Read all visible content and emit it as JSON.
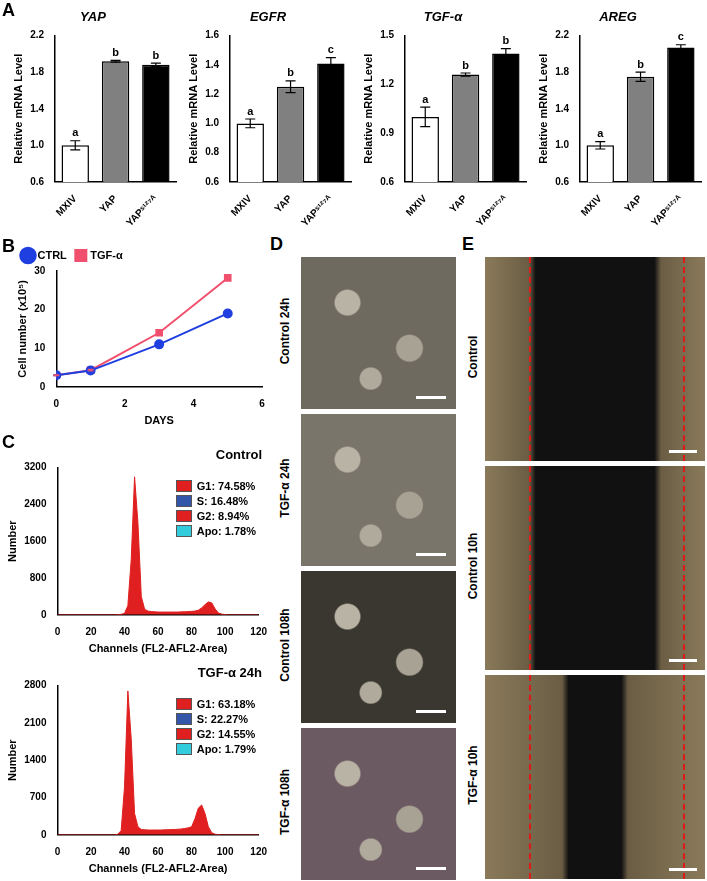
{
  "chart_data": [
    {
      "type": "bar",
      "title": "YAP",
      "categories": [
        "MXIV",
        "YAP",
        "YAPˢ¹²⁷ᴬ"
      ],
      "values": [
        1.0,
        1.92,
        1.88
      ],
      "errors": [
        0.05,
        0.01,
        0.02
      ],
      "annotations": [
        "a",
        "b",
        "b"
      ],
      "colors": [
        "#ffffff",
        "#808080",
        "#000000"
      ],
      "ylabel": "Relative mRNA Level",
      "ylim": [
        0.6,
        2.2
      ],
      "yticks": [
        0.6,
        {
          "value": 1.0,
          "label": "1.0"
        },
        1.4,
        1.8,
        2.2
      ],
      "grid": false
    },
    {
      "type": "bar",
      "title": "EGFR",
      "categories": [
        "MXIV",
        "YAP",
        "YAPˢ¹²⁷ᴬ"
      ],
      "values": [
        1.0,
        1.25,
        1.41
      ],
      "errors": [
        0.03,
        0.04,
        0.04
      ],
      "annotations": [
        "a",
        "b",
        "c"
      ],
      "colors": [
        "#ffffff",
        "#808080",
        "#000000"
      ],
      "ylabel": "Relative mRNA Level",
      "ylim": [
        0.6,
        1.6
      ],
      "yticks": [
        0.6,
        0.8,
        {
          "value": 1.0,
          "label": "1.0"
        },
        1.2,
        1.4,
        1.6
      ],
      "grid": false
    },
    {
      "type": "bar",
      "title": "TGF-α",
      "categories": [
        "MXIV",
        "YAP",
        "YAPˢ¹²⁷ᴬ"
      ],
      "values": [
        1.0,
        1.26,
        1.39
      ],
      "errors": [
        0.06,
        0.01,
        0.03
      ],
      "annotations": [
        "a",
        "b",
        "b"
      ],
      "colors": [
        "#ffffff",
        "#808080",
        "#000000"
      ],
      "ylabel": "Relative mRNA Level",
      "ylim": [
        0.6,
        1.5
      ],
      "yticks": [
        0.6,
        0.9,
        1.2,
        1.5
      ],
      "grid": false
    },
    {
      "type": "bar",
      "title": "AREG",
      "categories": [
        "MXIV",
        "YAP",
        "YAPˢ¹²⁷ᴬ"
      ],
      "values": [
        1.0,
        1.75,
        2.07
      ],
      "errors": [
        0.04,
        0.05,
        0.03
      ],
      "annotations": [
        "a",
        "b",
        "c"
      ],
      "colors": [
        "#ffffff",
        "#808080",
        "#000000"
      ],
      "ylabel": "Relative mRNA Level",
      "ylim": [
        0.6,
        2.2
      ],
      "yticks": [
        0.6,
        {
          "value": 1.0,
          "label": "1.0"
        },
        1.4,
        1.8,
        2.2
      ],
      "grid": false
    },
    {
      "type": "line",
      "x": [
        0,
        1,
        3,
        5
      ],
      "series": [
        {
          "name": "CTRL",
          "color": "#1f3fe0",
          "marker": "circle",
          "values": [
            3,
            4.2,
            11,
            19
          ],
          "errors": [
            0.1,
            0.2,
            0.3,
            0.8
          ]
        },
        {
          "name": "TGF-α",
          "color": "#f0506e",
          "marker": "square",
          "values": [
            3,
            4.3,
            14,
            28.2
          ],
          "errors": [
            0.1,
            0.2,
            0.3,
            0.3
          ]
        }
      ],
      "xlabel": "DAYS",
      "ylabel": "Cell number (x10⁵)",
      "xlim": [
        0,
        6
      ],
      "xticks": [
        0,
        2,
        4,
        6
      ],
      "ylim": [
        0,
        30
      ],
      "yticks": [
        0,
        10,
        20,
        30
      ],
      "legend": "top-left",
      "grid": false
    },
    {
      "type": "area",
      "title": "Control",
      "color": "#e02020",
      "x": [
        0,
        2,
        4,
        6,
        8,
        10,
        12,
        14,
        16,
        18,
        20,
        22,
        24,
        26,
        28,
        30,
        32,
        34,
        36,
        38,
        40,
        42,
        44,
        46,
        48,
        50,
        52,
        54,
        56,
        58,
        60,
        62,
        64,
        66,
        68,
        70,
        72,
        74,
        76,
        78,
        80,
        82,
        84,
        86,
        88,
        90,
        92,
        94,
        96,
        98,
        100,
        102,
        104,
        106,
        108,
        110,
        112,
        114,
        116,
        118,
        120
      ],
      "values": [
        0,
        0,
        0,
        0,
        0,
        0,
        0,
        0,
        0,
        0,
        0,
        0,
        0,
        0,
        0,
        0,
        0,
        0,
        5,
        10,
        30,
        200,
        1200,
        3000,
        2000,
        400,
        120,
        80,
        70,
        65,
        60,
        60,
        60,
        60,
        60,
        60,
        60,
        65,
        65,
        70,
        75,
        80,
        100,
        150,
        220,
        280,
        260,
        130,
        40,
        15,
        5,
        0,
        0,
        0,
        0,
        0,
        0,
        0,
        0,
        0,
        0
      ],
      "annotations": [
        {
          "label": "G1: 74.58%",
          "color": "#e02020"
        },
        {
          "label": "S: 16.48%",
          "color": "#3355aa"
        },
        {
          "label": "G2: 8.94%",
          "color": "#e02020"
        },
        {
          "label": "Apo: 1.78%",
          "color": "#33ccdd"
        }
      ],
      "xlabel": "Channels (FL2-AFL2-Area)",
      "ylabel": "Number",
      "xlim": [
        0,
        120
      ],
      "xticks": [
        0,
        20,
        40,
        60,
        80,
        100,
        120
      ],
      "ylim": [
        0,
        3200
      ],
      "yticks": [
        0,
        800,
        1600,
        2400,
        3200
      ],
      "grid": false
    },
    {
      "type": "area",
      "title": "TGF-α 24h",
      "color": "#e02020",
      "x": [
        0,
        2,
        4,
        6,
        8,
        10,
        12,
        14,
        16,
        18,
        20,
        22,
        24,
        26,
        28,
        30,
        32,
        34,
        36,
        38,
        40,
        42,
        44,
        46,
        48,
        50,
        52,
        54,
        56,
        58,
        60,
        62,
        64,
        66,
        68,
        70,
        72,
        74,
        76,
        78,
        80,
        82,
        84,
        86,
        88,
        90,
        92,
        94,
        96,
        98,
        100,
        102,
        104,
        106,
        108,
        110,
        112,
        114,
        116,
        118,
        120
      ],
      "values": [
        0,
        0,
        0,
        0,
        0,
        0,
        0,
        0,
        0,
        0,
        0,
        0,
        0,
        0,
        0,
        0,
        0,
        0,
        10,
        80,
        900,
        2700,
        1800,
        400,
        150,
        100,
        95,
        90,
        90,
        90,
        90,
        90,
        95,
        95,
        100,
        100,
        105,
        110,
        120,
        130,
        150,
        300,
        500,
        560,
        400,
        150,
        40,
        10,
        5,
        0,
        0,
        0,
        0,
        0,
        0,
        0,
        0,
        0,
        0,
        0,
        0
      ],
      "annotations": [
        {
          "label": "G1: 63.18%",
          "color": "#e02020"
        },
        {
          "label": "S:  22.27%",
          "color": "#3355aa"
        },
        {
          "label": "G2: 14.55%",
          "color": "#e02020"
        },
        {
          "label": "Apo: 1.79%",
          "color": "#33ccdd"
        }
      ],
      "xlabel": "Channels (FL2-AFL2-Area)",
      "ylabel": "Number",
      "xlim": [
        0,
        120
      ],
      "xticks": [
        0,
        20,
        40,
        60,
        80,
        100,
        120
      ],
      "ylim": [
        0,
        2800
      ],
      "yticks": [
        0,
        700,
        1400,
        2100,
        2800
      ],
      "grid": false
    }
  ],
  "panel_letters": [
    "A",
    "B",
    "C",
    "D",
    "E"
  ],
  "micrographs": [
    {
      "panel": "D",
      "labels": [
        "Control 24h",
        "TGF-α 24h",
        "Control 108h",
        "TGF-α 108h"
      ]
    },
    {
      "panel": "E",
      "labels": [
        "Control",
        "Control 10h",
        "TGF-α 10h"
      ]
    }
  ]
}
